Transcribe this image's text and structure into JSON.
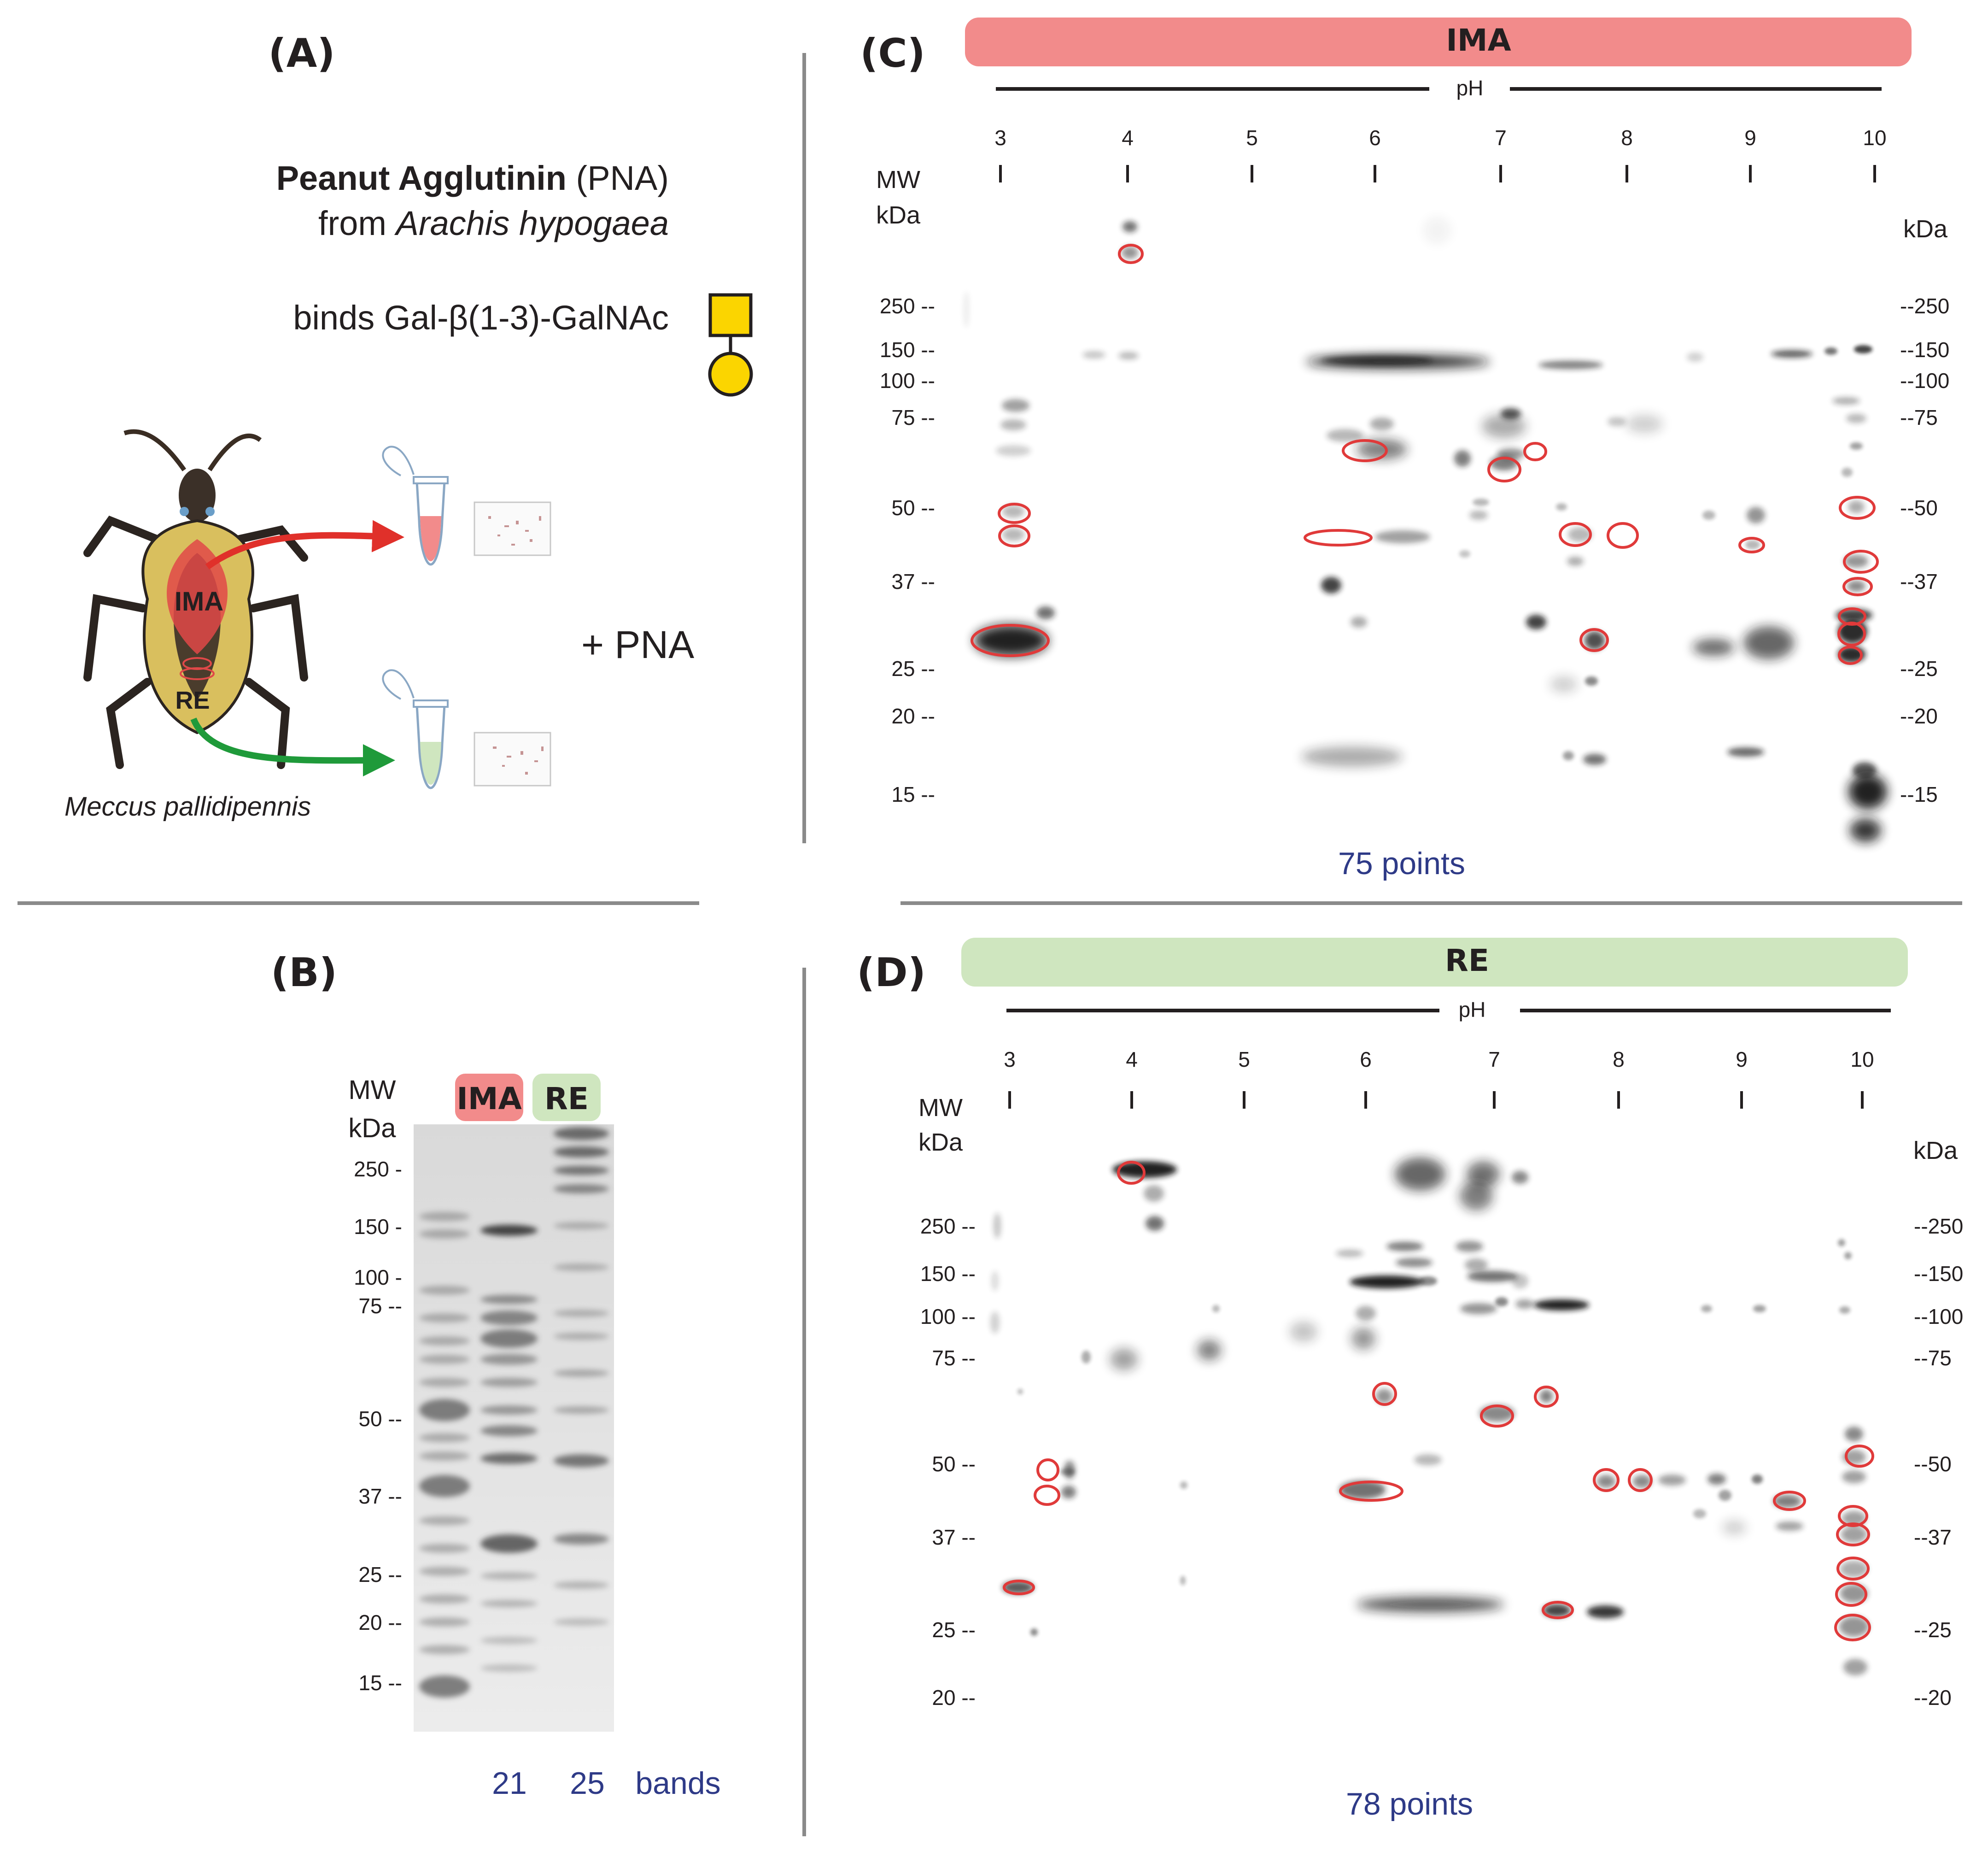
{
  "panels": {
    "a": {
      "label": "(A)",
      "lectin_bold": "Peanut Agglutinin",
      "lectin_abbr": " (PNA)",
      "source_prefix": "from ",
      "source_species": "Arachis hypogaea",
      "binds_text": "binds Gal-β(1-3)-GalNAc",
      "tissue_1": "IMA",
      "tissue_2": "RE",
      "plus_text": "+    PNA",
      "species": "Meccus pallidipennis",
      "colors": {
        "ima": "#f28b8b",
        "re": "#cfe6bf",
        "arrow_red": "#e0302a",
        "arrow_green": "#1f9a3a",
        "glycan_yellow": "#fbd500"
      },
      "icons": [
        "insect-illustration",
        "eppendorf-tube-icon",
        "mini-gel-icon",
        "galactose-square-icon",
        "galnac-circle-icon"
      ]
    },
    "b": {
      "label": "(B)",
      "mw_label": "MW",
      "kda_label": "kDa",
      "lane_labels": [
        "IMA",
        "RE"
      ],
      "mw_ticks": [
        "250 -",
        "150 -",
        "100 -",
        "75 --",
        "50 --",
        "37 --",
        "25 --",
        "20 --",
        "15 --"
      ],
      "band_counts": [
        "21",
        "25"
      ],
      "band_unit": "bands"
    },
    "c": {
      "label": "(C)",
      "banner": "IMA",
      "ph_label": "pH",
      "ph_ticks": [
        "3",
        "4",
        "5",
        "6",
        "7",
        "8",
        "9",
        "10"
      ],
      "mw_label": "MW",
      "kda_label": "kDa",
      "kda_right": "kDa",
      "mw_left": [
        "250 --",
        "150 --",
        "100 --",
        "75 --",
        "50 --",
        "37 --",
        "25 --",
        "20 --",
        "15 --"
      ],
      "mw_right": [
        "--250",
        "--150",
        "--100",
        "--75",
        "--50",
        "--37",
        "--25",
        "--20",
        "--15"
      ],
      "count_text": "75 points"
    },
    "d": {
      "label": "(D)",
      "banner": "RE",
      "ph_label": "pH",
      "ph_ticks": [
        "3",
        "4",
        "5",
        "6",
        "7",
        "8",
        "9",
        "10"
      ],
      "mw_label": "MW",
      "kda_label": "kDa",
      "kda_right": "kDa",
      "mw_left": [
        "250 --",
        "150 --",
        "100 --",
        "75 --",
        "50 --",
        "37 --",
        "25 --",
        "20 --"
      ],
      "mw_right": [
        "--250",
        "--150",
        "--100",
        "--75",
        "--50",
        "--37",
        "--25",
        "--20"
      ],
      "count_text": "78  points"
    }
  }
}
